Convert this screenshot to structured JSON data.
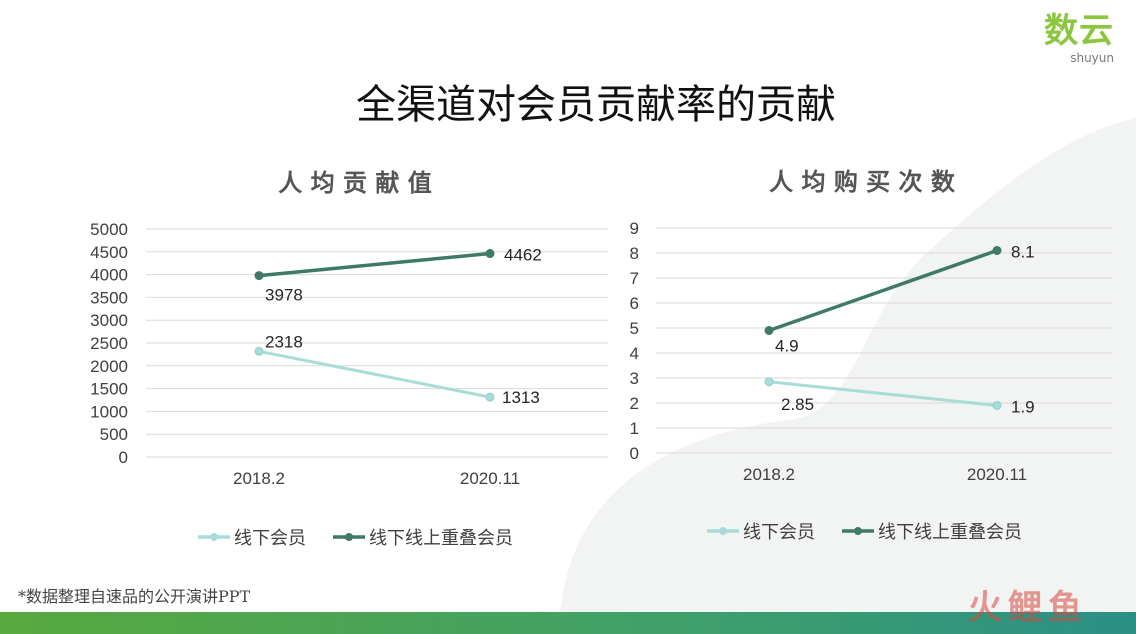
{
  "logo": {
    "main": "数云",
    "sub": "shuyun"
  },
  "page": {
    "title": "全渠道对会员贡献率的贡献"
  },
  "footnote": "*数据整理自速品的公开演讲PPT",
  "watermark": "火鲤鱼",
  "colors": {
    "series_light": "#a8dcd9",
    "series_dark": "#3e7a66",
    "bar_start": "#58a93e",
    "bar_end": "#2c8f86",
    "logo_green": "#8cc63f"
  },
  "chart_data": [
    {
      "type": "line",
      "title": "人 均 贡 献 值",
      "categories": [
        "2018.2",
        "2020.11"
      ],
      "series": [
        {
          "name": "线下会员",
          "values": [
            2318,
            1313
          ]
        },
        {
          "name": "线下线上重叠会员",
          "values": [
            3978,
            4462
          ]
        }
      ],
      "y_ticks": [
        "5000",
        "4500",
        "4000",
        "3500",
        "3000",
        "2500",
        "2000",
        "1500",
        "1000",
        "500",
        "0"
      ],
      "ylim": [
        0,
        5000
      ],
      "grid": true,
      "legend": "bottom"
    },
    {
      "type": "line",
      "title": "人 均 购 买 次 数",
      "categories": [
        "2018.2",
        "2020.11"
      ],
      "series": [
        {
          "name": "线下会员",
          "values": [
            2.85,
            1.9
          ]
        },
        {
          "name": "线下线上重叠会员",
          "values": [
            4.9,
            8.1
          ]
        }
      ],
      "y_ticks": [
        "9",
        "8",
        "7",
        "6",
        "5",
        "4",
        "3",
        "2",
        "1",
        "0"
      ],
      "ylim": [
        0,
        9
      ],
      "grid": true,
      "legend": "bottom"
    }
  ]
}
